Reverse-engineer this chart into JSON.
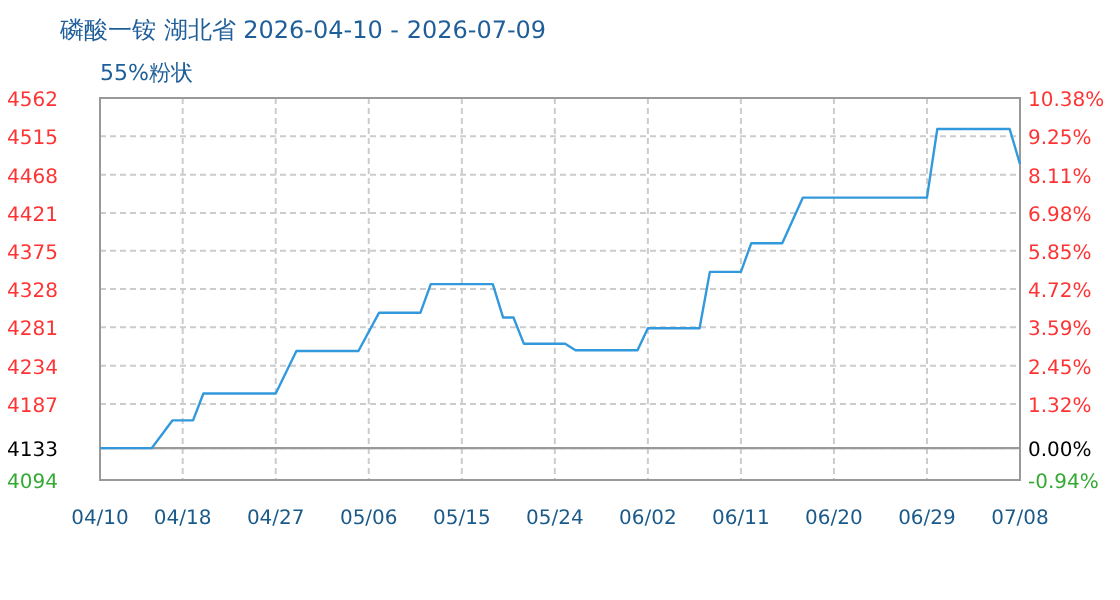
{
  "chart_data": {
    "type": "line",
    "title": "磷酸一铵 湖北省 2026-04-10 - 2026-07-09",
    "subtitle": "55%粉状",
    "x": [
      "2026-04-10",
      "2026-04-15",
      "2026-04-17",
      "2026-04-19",
      "2026-04-20",
      "2026-04-27",
      "2026-04-29",
      "2026-05-05",
      "2026-05-07",
      "2026-05-11",
      "2026-05-12",
      "2026-05-18",
      "2026-05-19",
      "2026-05-20",
      "2026-05-21",
      "2026-05-25",
      "2026-05-26",
      "2026-06-01",
      "2026-06-02",
      "2026-06-07",
      "2026-06-08",
      "2026-06-11",
      "2026-06-12",
      "2026-06-15",
      "2026-06-17",
      "2026-06-29",
      "2026-06-30",
      "2026-07-07",
      "2026-07-08"
    ],
    "series": [
      {
        "color": "#3399dd",
        "values": [
          4133,
          4133,
          4167,
          4167,
          4200,
          4200,
          4252,
          4252,
          4299,
          4299,
          4334,
          4334,
          4293,
          4293,
          4261,
          4261,
          4253,
          4253,
          4280,
          4280,
          4349,
          4349,
          4384,
          4384,
          4440,
          4440,
          4524,
          4524,
          4481
        ]
      }
    ],
    "xlim": [
      "2026-04-10",
      "2026-07-08"
    ],
    "xticks": [
      {
        "value": "2026-04-10",
        "label": "04/10"
      },
      {
        "value": "2026-04-18",
        "label": "04/18"
      },
      {
        "value": "2026-04-27",
        "label": "04/27"
      },
      {
        "value": "2026-05-06",
        "label": "05/06"
      },
      {
        "value": "2026-05-15",
        "label": "05/15"
      },
      {
        "value": "2026-05-24",
        "label": "05/24"
      },
      {
        "value": "2026-06-02",
        "label": "06/02"
      },
      {
        "value": "2026-06-11",
        "label": "06/11"
      },
      {
        "value": "2026-06-20",
        "label": "06/20"
      },
      {
        "value": "2026-06-29",
        "label": "06/29"
      },
      {
        "value": "2026-07-08",
        "label": "07/08"
      }
    ],
    "ylim": [
      4094,
      4562
    ],
    "yticks": [
      4094,
      4133,
      4187,
      4234,
      4281,
      4328,
      4375,
      4421,
      4468,
      4515,
      4562
    ],
    "y2lim": [
      -0.94,
      10.38
    ],
    "y2ticks": [
      {
        "value": -0.94,
        "label": "-0.94%"
      },
      {
        "value": 0,
        "label": "0.00%"
      },
      {
        "value": 1.32,
        "label": "1.32%"
      },
      {
        "value": 2.45,
        "label": "2.45%"
      },
      {
        "value": 3.59,
        "label": "3.59%"
      },
      {
        "value": 4.72,
        "label": "4.72%"
      },
      {
        "value": 5.85,
        "label": "5.85%"
      },
      {
        "value": 6.98,
        "label": "6.98%"
      },
      {
        "value": 8.11,
        "label": "8.11%"
      },
      {
        "value": 9.25,
        "label": "9.25%"
      },
      {
        "value": 10.38,
        "label": "10.38%"
      }
    ],
    "ref_lines": [
      {
        "axis": "y",
        "value": 4133,
        "color": "#999999",
        "line_style": "solid"
      }
    ],
    "grid": true,
    "marker": "none",
    "line_style": "solid"
  }
}
